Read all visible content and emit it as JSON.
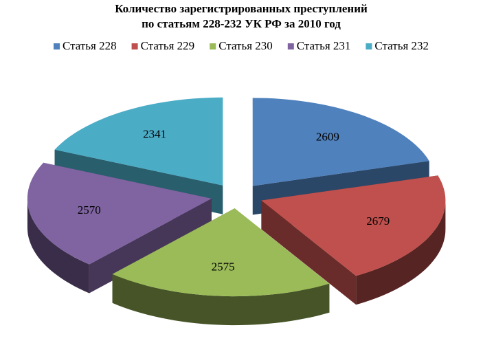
{
  "chart_data": {
    "type": "pie3d",
    "title": [
      "Количество зарегистрированных преступлений",
      "по статьям 228-232 УК РФ за 2010 год"
    ],
    "categories": [
      "Статья 228",
      "Статья 229",
      "Статья 230",
      "Статья 231",
      "Статья 232"
    ],
    "values": [
      2609,
      2679,
      2575,
      2570,
      2341
    ],
    "colors": [
      "#4f81bd",
      "#c0504d",
      "#9bbb59",
      "#8064a2",
      "#4bacc6"
    ],
    "legend": "top"
  }
}
